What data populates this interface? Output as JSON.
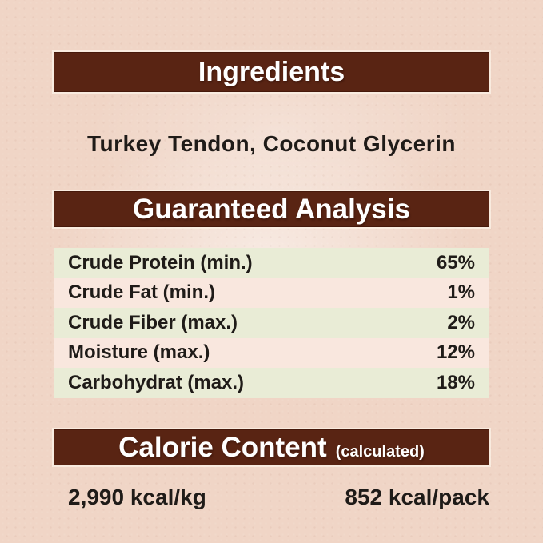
{
  "theme": {
    "background": "#f0d5c6",
    "banner": "#592413",
    "banner_text": "#ffffff",
    "banner_border": "#46190b",
    "row_odd": "#e9ecd6",
    "row_even": "#f9e7de",
    "text": "#1f1b18"
  },
  "sections": {
    "ingredients": {
      "title": "Ingredients",
      "content": "Turkey Tendon, Coconut Glycerin"
    },
    "guaranteed_analysis": {
      "title": "Guaranteed Analysis",
      "rows": [
        {
          "label": "Crude Protein (min.)",
          "value": "65%"
        },
        {
          "label": "Crude Fat (min.)",
          "value": "1%"
        },
        {
          "label": "Crude Fiber (max.)",
          "value": "2%"
        },
        {
          "label": "Moisture (max.)",
          "value": "12%"
        },
        {
          "label": "Carbohydrat (max.)",
          "value": "18%"
        }
      ]
    },
    "calorie_content": {
      "title": "Calorie Content",
      "subtitle": "(calculated)",
      "per_kg": "2,990 kcal/kg",
      "per_pack": "852 kcal/pack"
    }
  }
}
